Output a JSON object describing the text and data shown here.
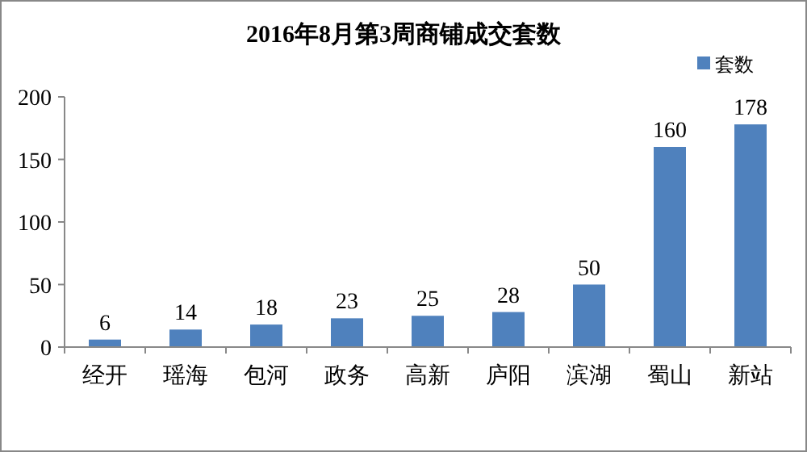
{
  "chart_data": {
    "type": "bar",
    "title": "2016年8月第3周商铺成交套数",
    "categories": [
      "经开",
      "瑶海",
      "包河",
      "政务",
      "高新",
      "庐阳",
      "滨湖",
      "蜀山",
      "新站"
    ],
    "series": [
      {
        "name": "套数",
        "color": "#4f81bd",
        "values": [
          6,
          14,
          18,
          23,
          25,
          28,
          50,
          160,
          178
        ]
      }
    ],
    "ylim": [
      0,
      200
    ],
    "yticks": [
      0,
      50,
      100,
      150,
      200
    ],
    "data_labels": true,
    "legend": "top right",
    "grid": false
  }
}
